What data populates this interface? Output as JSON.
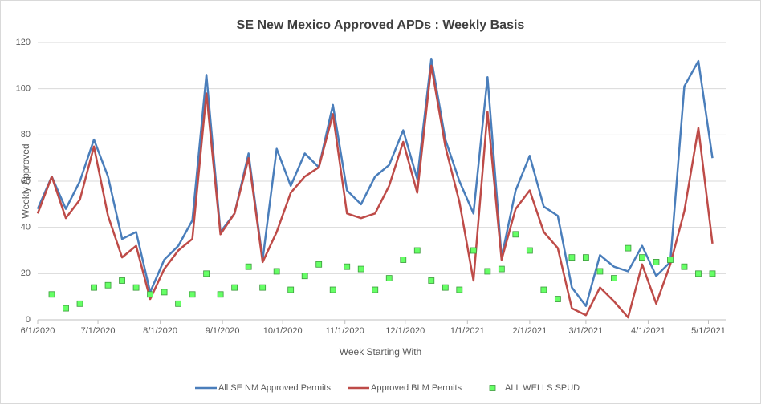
{
  "chart_data": {
    "type": "line",
    "title": "SE New Mexico Approved APDs : Weekly Basis",
    "xlabel": "Week Starting With",
    "ylabel": "Weekly Approved",
    "x": [
      "6/1/2020",
      "6/8/2020",
      "6/15/2020",
      "6/22/2020",
      "6/29/2020",
      "7/6/2020",
      "7/13/2020",
      "7/20/2020",
      "7/27/2020",
      "8/3/2020",
      "8/10/2020",
      "8/17/2020",
      "8/24/2020",
      "8/31/2020",
      "9/7/2020",
      "9/14/2020",
      "9/21/2020",
      "9/28/2020",
      "10/5/2020",
      "10/12/2020",
      "10/19/2020",
      "10/26/2020",
      "11/2/2020",
      "11/9/2020",
      "11/16/2020",
      "11/23/2020",
      "11/30/2020",
      "12/7/2020",
      "12/14/2020",
      "12/21/2020",
      "12/28/2020",
      "1/4/2021",
      "1/11/2021",
      "1/18/2021",
      "1/25/2021",
      "2/1/2021",
      "2/8/2021",
      "2/15/2021",
      "2/22/2021",
      "3/1/2021",
      "3/8/2021",
      "3/15/2021",
      "3/22/2021",
      "3/29/2021",
      "4/5/2021",
      "4/12/2021",
      "4/19/2021",
      "4/26/2021",
      "5/3/2021"
    ],
    "series": [
      {
        "name": "All SE NM Approved Permits",
        "color": "#4a7ebb",
        "marker": "none",
        "values": [
          48,
          62,
          48,
          60,
          78,
          62,
          35,
          38,
          12,
          26,
          32,
          43,
          106,
          38,
          46,
          72,
          26,
          74,
          58,
          72,
          66,
          93,
          56,
          50,
          62,
          67,
          82,
          61,
          113,
          78,
          60,
          46,
          105,
          27,
          56,
          71,
          49,
          45,
          14,
          6,
          28,
          23,
          21,
          32,
          19,
          25,
          101,
          112,
          70
        ]
      },
      {
        "name": "Approved BLM Permits",
        "color": "#be4b48",
        "marker": "none",
        "values": [
          46,
          62,
          44,
          52,
          75,
          45,
          27,
          32,
          9,
          22,
          30,
          35,
          98,
          37,
          46,
          70,
          25,
          38,
          55,
          62,
          66,
          89,
          46,
          44,
          46,
          58,
          77,
          55,
          110,
          75,
          51,
          17,
          90,
          26,
          48,
          56,
          38,
          31,
          5,
          2,
          14,
          8,
          1,
          24,
          7,
          24,
          47,
          83,
          33
        ]
      },
      {
        "name": "ALL WELLS SPUD",
        "color": "#66ff66",
        "marker": "square",
        "values": [
          null,
          11,
          5,
          7,
          14,
          15,
          17,
          14,
          11,
          12,
          7,
          11,
          20,
          11,
          14,
          23,
          14,
          21,
          13,
          19,
          24,
          13,
          23,
          22,
          13,
          18,
          26,
          30,
          17,
          14,
          13,
          30,
          21,
          22,
          37,
          30,
          13,
          9,
          27,
          27,
          21,
          18,
          31,
          27,
          25,
          26,
          23,
          20,
          20
        ]
      }
    ],
    "xlim": [
      "6/1/2020",
      "5/10/2021"
    ],
    "xticks": [
      "6/1/2020",
      "7/1/2020",
      "8/1/2020",
      "9/1/2020",
      "10/1/2020",
      "11/1/2020",
      "12/1/2020",
      "1/1/2021",
      "2/1/2021",
      "3/1/2021",
      "4/1/2021",
      "5/1/2021"
    ],
    "ylim": [
      0,
      120
    ],
    "yticks": [
      0,
      20,
      40,
      60,
      80,
      100,
      120
    ],
    "grid": true,
    "legend": "bottom"
  }
}
